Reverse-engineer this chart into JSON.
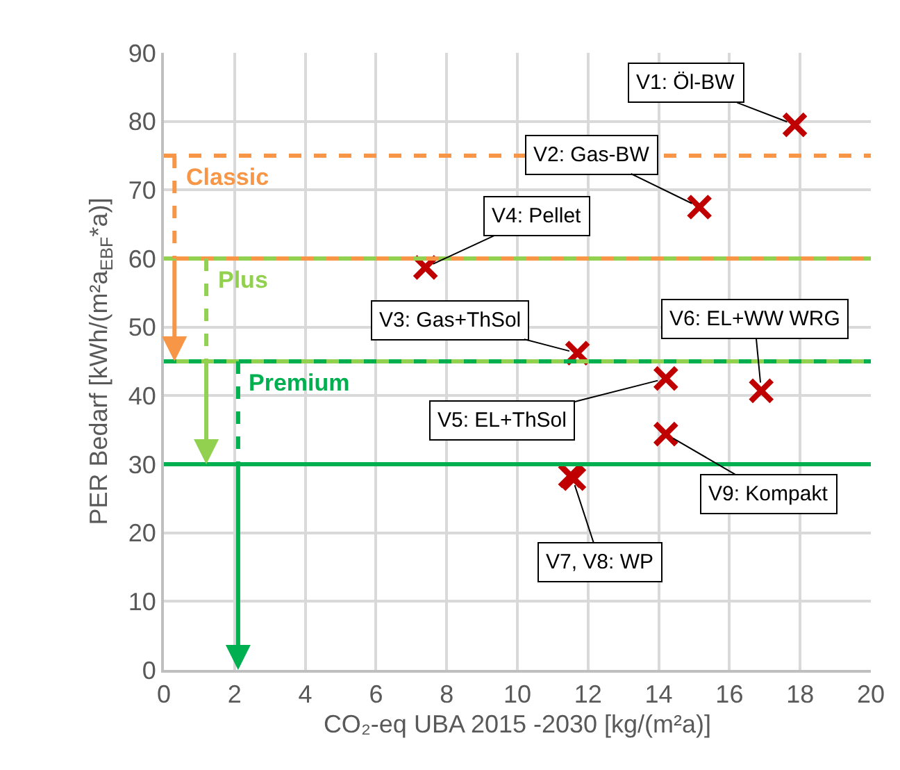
{
  "chart_data": {
    "type": "scatter",
    "xlabel": "CO₂-eq UBA 2015 -2030 [kg/(m²a)]",
    "ylabel": "PER Bedarf [kWh/(m²a$_{EBF}$*a)]",
    "xlim": [
      0,
      20
    ],
    "xticks": [
      0,
      2,
      4,
      6,
      8,
      10,
      12,
      14,
      16,
      18,
      20
    ],
    "ylim": [
      0,
      90
    ],
    "yticks": [
      0,
      10,
      20,
      30,
      40,
      50,
      60,
      70,
      80,
      90
    ],
    "grid": true,
    "series": [
      {
        "marker": "cross",
        "color": "#c00000",
        "x": [
          17.85,
          15.15,
          7.4,
          11.7,
          14.2,
          16.9,
          14.2,
          11.5,
          11.6
        ],
        "values": [
          79.5,
          67.5,
          58.7,
          46.2,
          42.5,
          40.7,
          34.4,
          28.3,
          27.9
        ]
      }
    ],
    "ref_lines": [
      {
        "axis": "y",
        "value": 75,
        "color": "#f79646",
        "line_style": "dashed",
        "label": "Classic"
      },
      {
        "axis": "y",
        "value": 60,
        "color": "#f79646",
        "line_style": "solid"
      },
      {
        "axis": "y",
        "value": 60,
        "color": "#92d050",
        "line_style": "dashed",
        "label": "Plus"
      },
      {
        "axis": "y",
        "value": 45,
        "color": "#92d050",
        "line_style": "solid"
      },
      {
        "axis": "y",
        "value": 45,
        "color": "#00b050",
        "line_style": "dashed",
        "label": "Premium"
      },
      {
        "axis": "y",
        "value": 30,
        "color": "#00b050",
        "line_style": "solid"
      }
    ],
    "annotations": [
      {
        "text": "V1: Öl-BW",
        "x": 17.85,
        "y": 79.5
      },
      {
        "text": "V2: Gas-BW",
        "x": 15.15,
        "y": 67.5
      },
      {
        "text": "V4: Pellet",
        "x": 7.4,
        "y": 58.7
      },
      {
        "text": "V3: Gas+ThSol",
        "x": 11.7,
        "y": 46.2
      },
      {
        "text": "V5: EL+ThSol",
        "x": 14.2,
        "y": 42.5
      },
      {
        "text": "V6: EL+WW WRG",
        "x": 16.9,
        "y": 40.7
      },
      {
        "text": "V9: Kompakt",
        "x": 14.2,
        "y": 34.4
      },
      {
        "text": "V7, V8: WP",
        "x": 11.55,
        "y": 28.1
      }
    ]
  }
}
